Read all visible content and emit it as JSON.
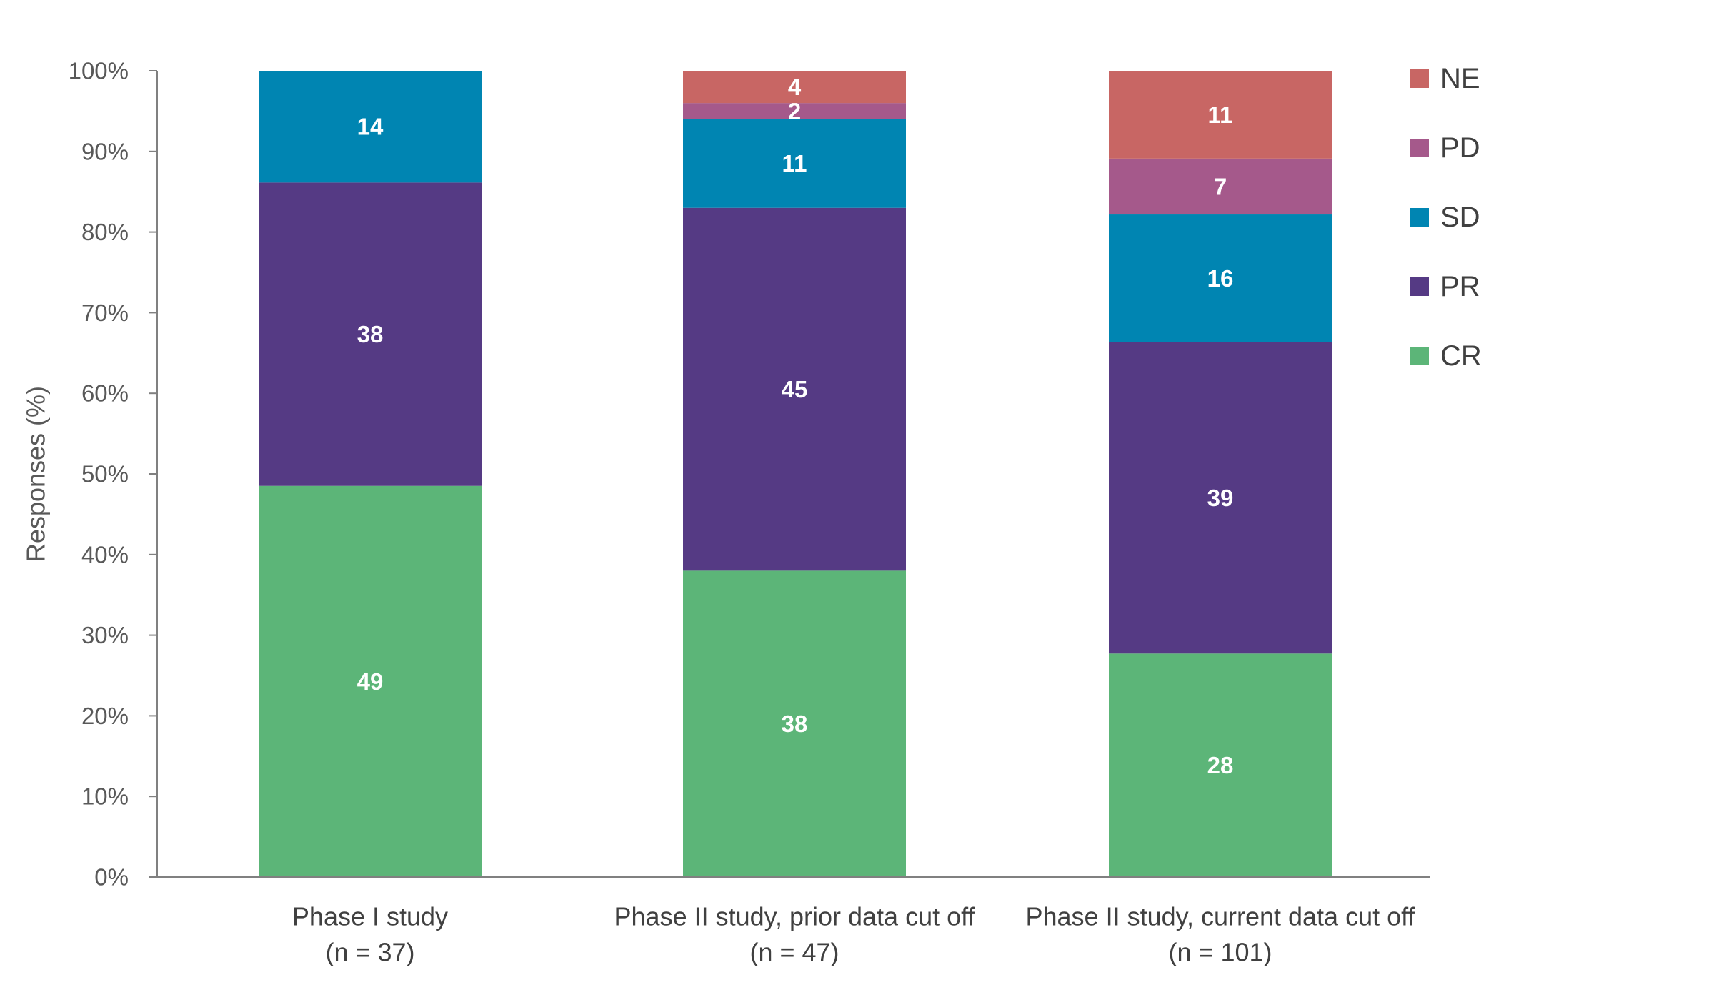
{
  "chart_data": {
    "type": "bar",
    "stacked": true,
    "ylabel": "Responses (%)",
    "xlabel": "",
    "ylim": [
      0,
      100
    ],
    "yticks": [
      "0%",
      "10%",
      "20%",
      "30%",
      "40%",
      "50%",
      "60%",
      "70%",
      "80%",
      "90%",
      "100%"
    ],
    "grid": false,
    "legend_position": "right",
    "categories": [
      [
        "Phase I study",
        "(n = 37)"
      ],
      [
        "Phase II study, prior data cut off",
        "(n = 47)"
      ],
      [
        "Phase II study, current data cut off",
        "(n = 101)"
      ]
    ],
    "series": [
      {
        "name": "CR",
        "color": "#5cb578",
        "values": [
          49,
          38,
          28
        ],
        "labels": [
          "49",
          "38",
          "28"
        ]
      },
      {
        "name": "PR",
        "color": "#553a84",
        "values": [
          38,
          45,
          39
        ],
        "labels": [
          "38",
          "45",
          "39"
        ]
      },
      {
        "name": "SD",
        "color": "#0085b2",
        "values": [
          14,
          11,
          16
        ],
        "labels": [
          "14",
          "11",
          "16"
        ]
      },
      {
        "name": "PD",
        "color": "#a5598b",
        "values": [
          0,
          2,
          7
        ],
        "labels": [
          "",
          "2",
          "7"
        ]
      },
      {
        "name": "NE",
        "color": "#c86664",
        "values": [
          0,
          4,
          11
        ],
        "labels": [
          "",
          "4",
          "11"
        ]
      }
    ]
  }
}
